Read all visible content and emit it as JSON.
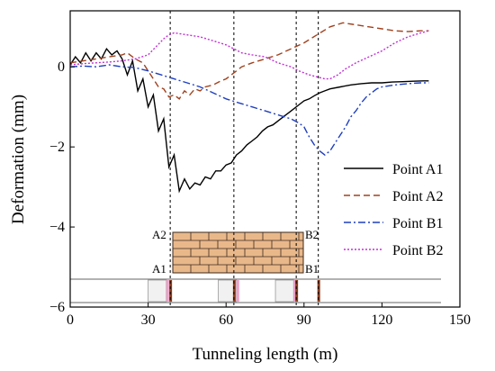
{
  "chart_data": {
    "type": "line",
    "xlabel": "Tunneling length (m)",
    "ylabel": "Deformation (mm)",
    "xlim": [
      0,
      150
    ],
    "ylim": [
      -6,
      1.4
    ],
    "xticks": [
      0,
      30,
      60,
      90,
      120,
      150
    ],
    "yticks": [
      0,
      -2,
      -4,
      -6
    ],
    "grid": false,
    "legend_placement": "right",
    "reference_lines_x": [
      38.5,
      63,
      87,
      95.5
    ],
    "annotations": [
      "A2",
      "B2",
      "A1",
      "B1"
    ],
    "colors": {
      "A1": "#000000",
      "A2": "#a0421e",
      "B1": "#1f3fbf",
      "B2": "#c22fd6",
      "brick": "#e9b88a",
      "mortar": "#3b2a1f"
    },
    "series": [
      {
        "name": "Point A1",
        "style": "solid",
        "x": [
          0,
          2,
          4,
          6,
          8,
          10,
          12,
          14,
          16,
          18,
          20,
          22,
          24,
          26,
          28,
          30,
          32,
          34,
          36,
          38,
          40,
          42,
          44,
          46,
          48,
          50,
          52,
          54,
          56,
          58,
          60,
          62,
          64,
          66,
          68,
          70,
          72,
          74,
          76,
          78,
          80,
          82,
          84,
          86,
          88,
          90,
          92,
          94,
          96,
          98,
          100,
          104,
          108,
          112,
          116,
          120,
          124,
          128,
          132,
          136,
          138
        ],
        "y": [
          0.05,
          0.25,
          0.1,
          0.35,
          0.15,
          0.35,
          0.2,
          0.45,
          0.3,
          0.4,
          0.2,
          -0.2,
          0.15,
          -0.6,
          -0.3,
          -1.0,
          -0.7,
          -1.6,
          -1.3,
          -2.5,
          -2.2,
          -3.1,
          -2.8,
          -3.05,
          -2.9,
          -2.95,
          -2.75,
          -2.8,
          -2.6,
          -2.6,
          -2.45,
          -2.4,
          -2.2,
          -2.1,
          -1.95,
          -1.85,
          -1.75,
          -1.6,
          -1.5,
          -1.45,
          -1.35,
          -1.25,
          -1.15,
          -1.05,
          -0.95,
          -0.85,
          -0.8,
          -0.72,
          -0.65,
          -0.6,
          -0.55,
          -0.5,
          -0.45,
          -0.42,
          -0.4,
          -0.4,
          -0.38,
          -0.37,
          -0.36,
          -0.35,
          -0.35
        ]
      },
      {
        "name": "Point A2",
        "style": "dashed",
        "x": [
          0,
          5,
          10,
          15,
          20,
          22,
          25,
          28,
          30,
          32,
          34,
          36,
          38,
          40,
          42,
          44,
          46,
          48,
          50,
          52,
          55,
          58,
          60,
          63,
          66,
          70,
          75,
          80,
          85,
          90,
          95,
          100,
          105,
          110,
          115,
          120,
          125,
          130,
          135,
          138
        ],
        "y": [
          0.1,
          0.15,
          0.2,
          0.25,
          0.3,
          0.35,
          0.2,
          0.1,
          -0.1,
          -0.3,
          -0.5,
          -0.55,
          -0.75,
          -0.7,
          -0.8,
          -0.6,
          -0.7,
          -0.55,
          -0.6,
          -0.5,
          -0.45,
          -0.35,
          -0.3,
          -0.15,
          0.0,
          0.1,
          0.2,
          0.3,
          0.45,
          0.6,
          0.8,
          1.0,
          1.1,
          1.05,
          1.0,
          0.95,
          0.9,
          0.88,
          0.9,
          0.9
        ]
      },
      {
        "name": "Point B1",
        "style": "dashdot",
        "x": [
          0,
          5,
          10,
          15,
          20,
          25,
          30,
          35,
          40,
          45,
          50,
          55,
          60,
          65,
          70,
          75,
          80,
          85,
          88,
          90,
          92,
          94,
          96,
          98,
          100,
          102,
          104,
          106,
          108,
          110,
          112,
          114,
          116,
          118,
          120,
          125,
          130,
          135,
          138
        ],
        "y": [
          0.0,
          0.02,
          0.0,
          0.05,
          0.0,
          -0.02,
          -0.1,
          -0.2,
          -0.3,
          -0.4,
          -0.5,
          -0.65,
          -0.8,
          -0.9,
          -1.0,
          -1.1,
          -1.2,
          -1.3,
          -1.4,
          -1.5,
          -1.75,
          -1.95,
          -2.1,
          -2.2,
          -2.1,
          -1.9,
          -1.7,
          -1.5,
          -1.25,
          -1.1,
          -0.9,
          -0.75,
          -0.65,
          -0.55,
          -0.5,
          -0.45,
          -0.42,
          -0.4,
          -0.4
        ]
      },
      {
        "name": "Point B2",
        "style": "dotted",
        "x": [
          0,
          5,
          10,
          15,
          20,
          25,
          30,
          33,
          36,
          38,
          40,
          45,
          50,
          55,
          60,
          63,
          66,
          70,
          75,
          80,
          85,
          88,
          90,
          92,
          95,
          98,
          100,
          103,
          106,
          110,
          115,
          120,
          125,
          130,
          135,
          138
        ],
        "y": [
          0.05,
          0.08,
          0.1,
          0.12,
          0.15,
          0.2,
          0.3,
          0.5,
          0.7,
          0.8,
          0.85,
          0.8,
          0.75,
          0.65,
          0.55,
          0.45,
          0.35,
          0.3,
          0.25,
          0.1,
          0.0,
          -0.1,
          -0.15,
          -0.2,
          -0.25,
          -0.3,
          -0.3,
          -0.2,
          -0.05,
          0.1,
          0.25,
          0.4,
          0.6,
          0.75,
          0.85,
          0.9
        ]
      }
    ]
  }
}
